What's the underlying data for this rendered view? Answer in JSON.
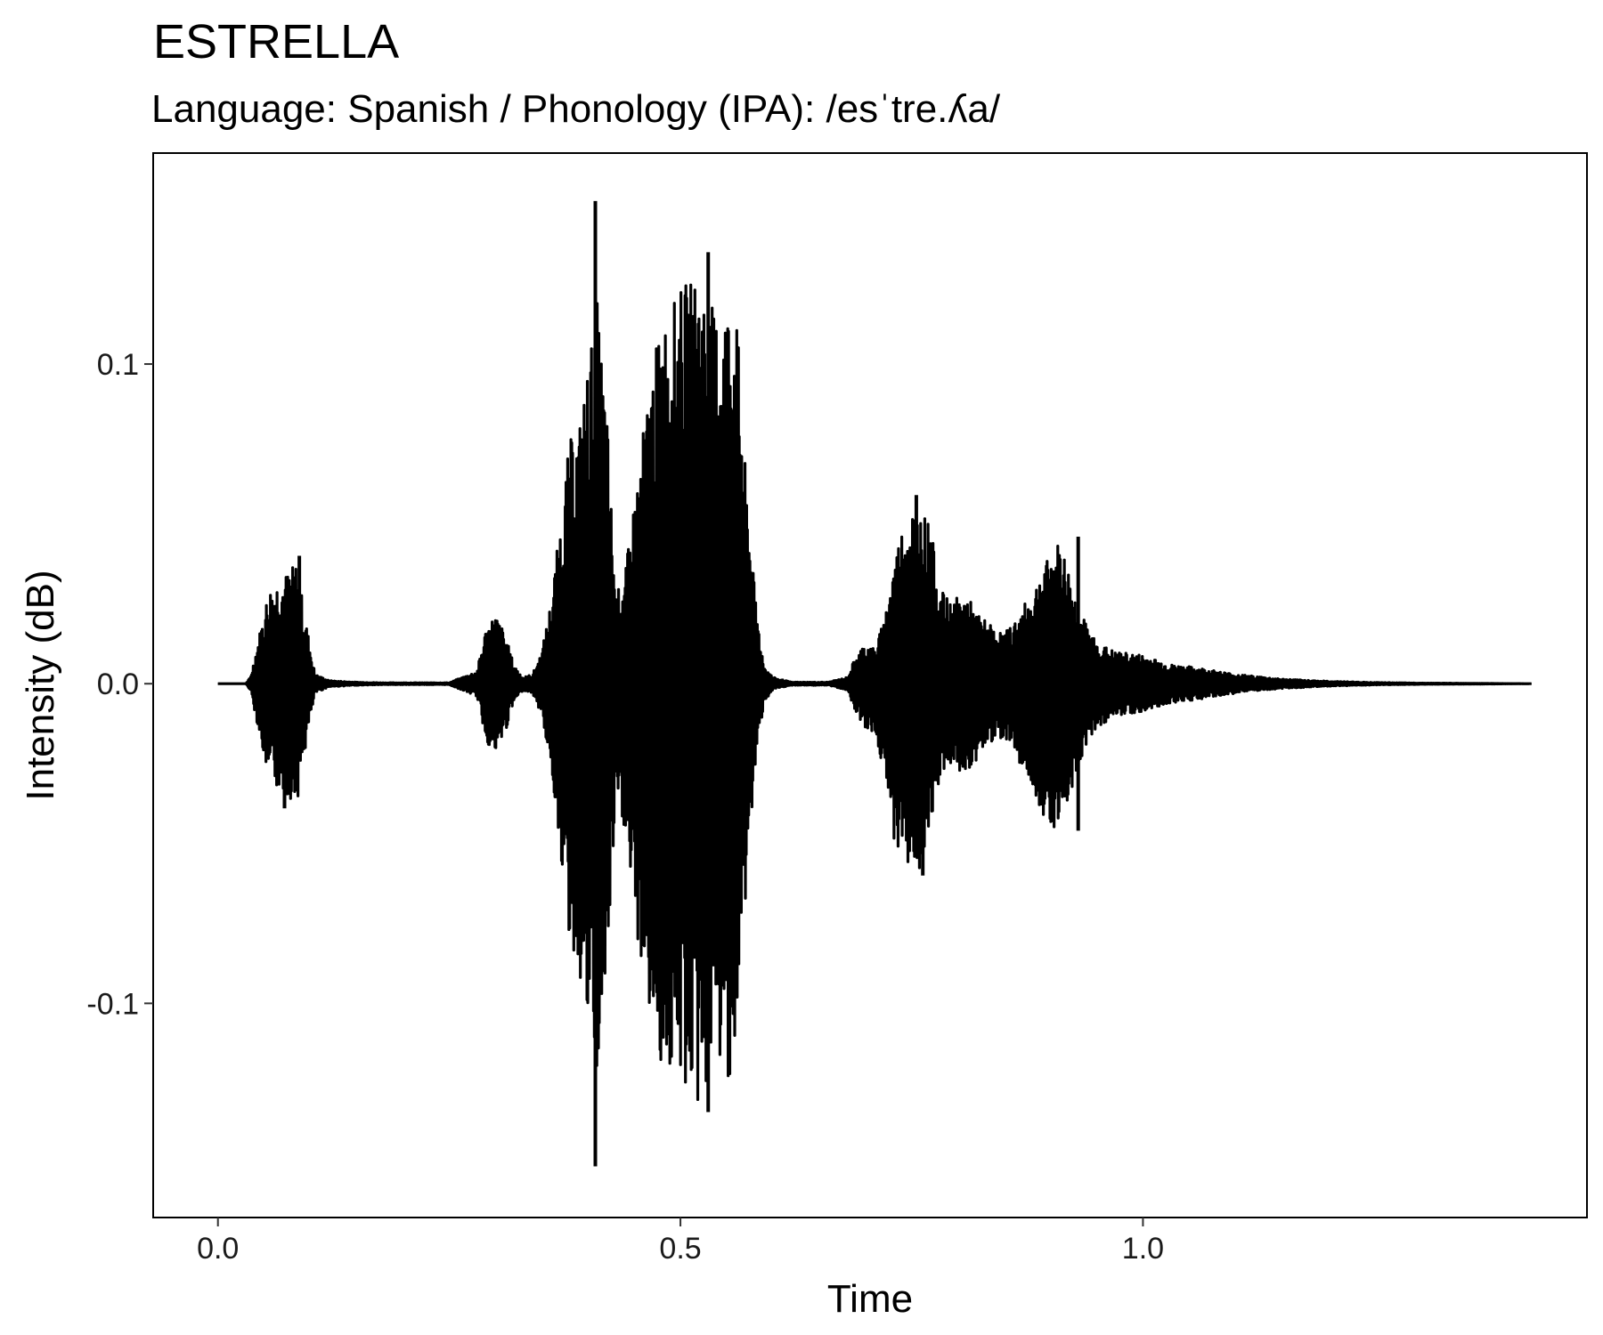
{
  "chart_data": {
    "type": "line",
    "title": "ESTRELLA",
    "subtitle": "Language: Spanish / Phonology (IPA): /esˈtre.ʎa/",
    "xlabel": "Time",
    "ylabel": "Intensity (dB)",
    "xlim": [
      -0.07,
      1.48
    ],
    "ylim": [
      -0.167,
      0.166
    ],
    "x_ticks": [
      0.0,
      0.5,
      1.0
    ],
    "x_tick_labels": [
      "0.0",
      "0.5",
      "1.0"
    ],
    "y_ticks": [
      -0.1,
      0.0,
      0.1
    ],
    "y_tick_labels": [
      "-0.1",
      "0.0",
      "0.1"
    ],
    "grid": false,
    "line_color": "#000000",
    "series": [
      {
        "envelope": {
          "x": [
            0.0,
            0.03,
            0.035,
            0.045,
            0.055,
            0.065,
            0.075,
            0.085,
            0.095,
            0.105,
            0.12,
            0.15,
            0.18,
            0.25,
            0.28,
            0.29,
            0.3,
            0.31,
            0.32,
            0.33,
            0.34,
            0.35,
            0.36,
            0.37,
            0.38,
            0.39,
            0.4,
            0.41,
            0.42,
            0.43,
            0.44,
            0.45,
            0.46,
            0.47,
            0.48,
            0.49,
            0.5,
            0.51,
            0.52,
            0.53,
            0.54,
            0.55,
            0.56,
            0.57,
            0.58,
            0.59,
            0.6,
            0.62,
            0.66,
            0.68,
            0.69,
            0.7,
            0.71,
            0.72,
            0.73,
            0.74,
            0.75,
            0.76,
            0.77,
            0.78,
            0.79,
            0.8,
            0.81,
            0.82,
            0.83,
            0.84,
            0.85,
            0.86,
            0.87,
            0.88,
            0.89,
            0.9,
            0.91,
            0.92,
            0.93,
            0.94,
            0.95,
            0.97,
            1.0,
            1.03,
            1.06,
            1.1,
            1.15,
            1.2,
            1.25,
            1.3,
            1.42
          ],
          "upper": [
            0.0,
            0.0,
            0.002,
            0.016,
            0.03,
            0.033,
            0.035,
            0.038,
            0.02,
            0.003,
            0.001,
            0.0005,
            0.0003,
            0.0003,
            0.004,
            0.018,
            0.022,
            0.016,
            0.006,
            0.002,
            0.003,
            0.01,
            0.026,
            0.05,
            0.076,
            0.08,
            0.1,
            0.12,
            0.088,
            0.028,
            0.034,
            0.058,
            0.08,
            0.1,
            0.114,
            0.118,
            0.124,
            0.126,
            0.13,
            0.12,
            0.116,
            0.121,
            0.12,
            0.068,
            0.03,
            0.006,
            0.002,
            0.0005,
            0.0005,
            0.002,
            0.009,
            0.013,
            0.011,
            0.02,
            0.038,
            0.05,
            0.056,
            0.055,
            0.05,
            0.03,
            0.026,
            0.027,
            0.028,
            0.022,
            0.02,
            0.017,
            0.016,
            0.019,
            0.024,
            0.028,
            0.036,
            0.04,
            0.045,
            0.036,
            0.024,
            0.018,
            0.013,
            0.01,
            0.009,
            0.006,
            0.005,
            0.003,
            0.0015,
            0.0008,
            0.0004,
            0.0002,
            0.0
          ],
          "lower": [
            0.0,
            0.0,
            -0.002,
            -0.016,
            -0.031,
            -0.033,
            -0.035,
            -0.038,
            -0.02,
            -0.003,
            -0.001,
            -0.0005,
            -0.0003,
            -0.0003,
            -0.004,
            -0.018,
            -0.023,
            -0.016,
            -0.006,
            -0.002,
            -0.003,
            -0.01,
            -0.026,
            -0.052,
            -0.082,
            -0.09,
            -0.11,
            -0.126,
            -0.096,
            -0.04,
            -0.046,
            -0.076,
            -0.092,
            -0.11,
            -0.12,
            -0.124,
            -0.126,
            -0.128,
            -0.135,
            -0.124,
            -0.12,
            -0.124,
            -0.12,
            -0.07,
            -0.03,
            -0.006,
            -0.002,
            -0.0005,
            -0.0005,
            -0.002,
            -0.009,
            -0.014,
            -0.016,
            -0.028,
            -0.048,
            -0.055,
            -0.058,
            -0.06,
            -0.052,
            -0.03,
            -0.027,
            -0.028,
            -0.029,
            -0.024,
            -0.02,
            -0.017,
            -0.017,
            -0.019,
            -0.028,
            -0.032,
            -0.04,
            -0.044,
            -0.046,
            -0.036,
            -0.026,
            -0.018,
            -0.014,
            -0.01,
            -0.009,
            -0.006,
            -0.005,
            -0.003,
            -0.0015,
            -0.0008,
            -0.0004,
            -0.0002,
            0.0
          ]
        },
        "peaks": [
          {
            "x": 0.072,
            "value": -0.039
          },
          {
            "x": 0.088,
            "value": 0.04
          },
          {
            "x": 0.408,
            "value": 0.151
          },
          {
            "x": 0.408,
            "value": -0.151
          },
          {
            "x": 0.53,
            "value": 0.135
          },
          {
            "x": 0.53,
            "value": -0.134
          },
          {
            "x": 0.755,
            "value": 0.059
          },
          {
            "x": 0.762,
            "value": -0.06
          },
          {
            "x": 0.93,
            "value": 0.046
          },
          {
            "x": 0.93,
            "value": -0.046
          }
        ]
      }
    ]
  }
}
